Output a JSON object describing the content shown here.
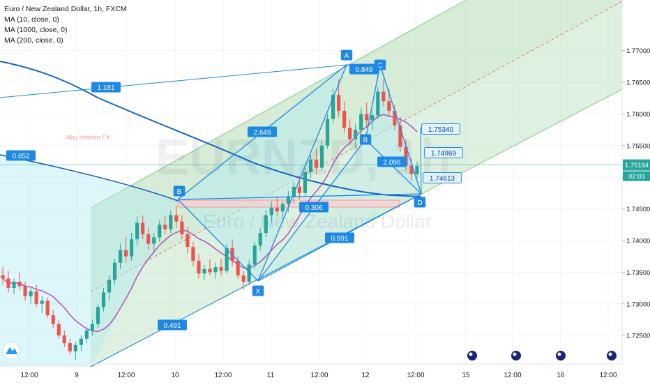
{
  "chart_data": {
    "type": "candlestick",
    "title": "Euro / New Zealand Dollar, 1h, FXCM",
    "indicators": [
      "MA (10, close, 0)",
      "MA (1000, close, 0)",
      "MA (200, close, 0)"
    ],
    "watermark_symbol": "EURNZD, 1h",
    "watermark_name": "Euro / New Zealand Dollar",
    "author_tag": "Abu Ibrahim FX",
    "y_axis": {
      "ticks": [
        "1.77000",
        "1.76500",
        "1.76000",
        "1.75500",
        "1.75000",
        "1.74500",
        "1.74000",
        "1.73500",
        "1.73000",
        "1.72500"
      ],
      "range": [
        1.7205,
        1.778
      ]
    },
    "x_axis": {
      "ticks": [
        "12:00",
        "9",
        "12:00",
        "10",
        "12:00",
        "11",
        "12:00",
        "12",
        "12:00",
        "15",
        "12:00",
        "16",
        "12:00"
      ]
    },
    "last_price": "1.75194",
    "countdown": "02:03",
    "pattern_points": [
      {
        "label": "A",
        "price": 1.7652
      },
      {
        "label": "C",
        "price": 1.7652
      },
      {
        "label": "B",
        "price": 1.7536
      },
      {
        "label": "B",
        "price": 1.7454
      },
      {
        "label": "X",
        "price": 1.7332
      },
      {
        "label": "D",
        "price": 1.7461
      }
    ],
    "ratios": [
      "0.849",
      "1.181",
      "2.649",
      "0.652",
      "0.306",
      "2.096",
      "0.591",
      "0.491"
    ],
    "price_labels": [
      "1.75340",
      "1.74969",
      "1.74613"
    ],
    "candles": [
      [
        1.7345,
        1.7358,
        1.733,
        1.734
      ],
      [
        1.734,
        1.7352,
        1.7318,
        1.7325
      ],
      [
        1.7325,
        1.734,
        1.7315,
        1.7335
      ],
      [
        1.7335,
        1.735,
        1.7322,
        1.7328
      ],
      [
        1.7328,
        1.7335,
        1.7305,
        1.7312
      ],
      [
        1.7312,
        1.7325,
        1.73,
        1.732
      ],
      [
        1.732,
        1.733,
        1.7295,
        1.73
      ],
      [
        1.73,
        1.7312,
        1.7285,
        1.7305
      ],
      [
        1.7305,
        1.731,
        1.7278,
        1.7282
      ],
      [
        1.7282,
        1.729,
        1.7262,
        1.7268
      ],
      [
        1.7268,
        1.7275,
        1.7245,
        1.725
      ],
      [
        1.725,
        1.7258,
        1.7232,
        1.7238
      ],
      [
        1.7238,
        1.7245,
        1.722,
        1.7225
      ],
      [
        1.7225,
        1.724,
        1.7212,
        1.7235
      ],
      [
        1.7235,
        1.725,
        1.7225,
        1.7245
      ],
      [
        1.7245,
        1.7262,
        1.7238,
        1.7258
      ],
      [
        1.7258,
        1.7275,
        1.725,
        1.7268
      ],
      [
        1.7268,
        1.73,
        1.7262,
        1.7295
      ],
      [
        1.7295,
        1.7325,
        1.7288,
        1.7318
      ],
      [
        1.7318,
        1.7345,
        1.7305,
        1.7338
      ],
      [
        1.7338,
        1.7372,
        1.733,
        1.7365
      ],
      [
        1.7365,
        1.7395,
        1.7355,
        1.7385
      ],
      [
        1.7385,
        1.7405,
        1.7365,
        1.7375
      ],
      [
        1.7375,
        1.7412,
        1.7368,
        1.7402
      ],
      [
        1.7402,
        1.7438,
        1.7392,
        1.7428
      ],
      [
        1.7428,
        1.744,
        1.7402,
        1.741
      ],
      [
        1.741,
        1.742,
        1.7385,
        1.7395
      ],
      [
        1.7395,
        1.7412,
        1.738,
        1.7405
      ],
      [
        1.7405,
        1.7432,
        1.7398,
        1.7425
      ],
      [
        1.7425,
        1.744,
        1.741,
        1.7418
      ],
      [
        1.7418,
        1.7448,
        1.7412,
        1.744
      ],
      [
        1.744,
        1.7455,
        1.742,
        1.743
      ],
      [
        1.743,
        1.744,
        1.7402,
        1.741
      ],
      [
        1.741,
        1.7422,
        1.738,
        1.739
      ],
      [
        1.739,
        1.7398,
        1.736,
        1.7368
      ],
      [
        1.7368,
        1.7378,
        1.734,
        1.7348
      ],
      [
        1.7348,
        1.7362,
        1.7338,
        1.7355
      ],
      [
        1.7355,
        1.737,
        1.7345,
        1.735
      ],
      [
        1.735,
        1.7365,
        1.734,
        1.7358
      ],
      [
        1.7358,
        1.7372,
        1.7345,
        1.7352
      ],
      [
        1.7352,
        1.7395,
        1.7348,
        1.7388
      ],
      [
        1.7388,
        1.7402,
        1.736,
        1.7368
      ],
      [
        1.7368,
        1.7375,
        1.734,
        1.7345
      ],
      [
        1.7345,
        1.7352,
        1.7322,
        1.7335
      ],
      [
        1.7335,
        1.737,
        1.733,
        1.7362
      ],
      [
        1.7362,
        1.7398,
        1.7355,
        1.7392
      ],
      [
        1.7392,
        1.742,
        1.7385,
        1.7412
      ],
      [
        1.7412,
        1.7448,
        1.7405,
        1.744
      ],
      [
        1.744,
        1.7462,
        1.7428,
        1.7452
      ],
      [
        1.7452,
        1.747,
        1.7438,
        1.7446
      ],
      [
        1.7446,
        1.7462,
        1.7435,
        1.7458
      ],
      [
        1.7458,
        1.7478,
        1.7445,
        1.747
      ],
      [
        1.747,
        1.7492,
        1.7458,
        1.7485
      ],
      [
        1.7485,
        1.7502,
        1.7465,
        1.7475
      ],
      [
        1.7475,
        1.7515,
        1.747,
        1.7508
      ],
      [
        1.7508,
        1.7535,
        1.7498,
        1.7528
      ],
      [
        1.7528,
        1.7545,
        1.7505,
        1.7515
      ],
      [
        1.7515,
        1.7558,
        1.751,
        1.755
      ],
      [
        1.755,
        1.76,
        1.7545,
        1.7592
      ],
      [
        1.7592,
        1.764,
        1.7585,
        1.763
      ],
      [
        1.763,
        1.7655,
        1.7595,
        1.7605
      ],
      [
        1.7605,
        1.762,
        1.757,
        1.7578
      ],
      [
        1.7578,
        1.7592,
        1.7552,
        1.756
      ],
      [
        1.756,
        1.7585,
        1.7545,
        1.7575
      ],
      [
        1.7575,
        1.761,
        1.7565,
        1.76
      ],
      [
        1.76,
        1.7618,
        1.758,
        1.759
      ],
      [
        1.759,
        1.7605,
        1.7575,
        1.7598
      ],
      [
        1.7598,
        1.7642,
        1.7592,
        1.7635
      ],
      [
        1.7635,
        1.7655,
        1.7612,
        1.762
      ],
      [
        1.762,
        1.764,
        1.7595,
        1.7605
      ],
      [
        1.7605,
        1.7615,
        1.7575,
        1.7582
      ],
      [
        1.7582,
        1.7595,
        1.754,
        1.7548
      ],
      [
        1.7548,
        1.756,
        1.751,
        1.7518
      ],
      [
        1.7518,
        1.753,
        1.7495,
        1.7505
      ],
      [
        1.7505,
        1.7525,
        1.7498,
        1.7518
      ]
    ]
  }
}
